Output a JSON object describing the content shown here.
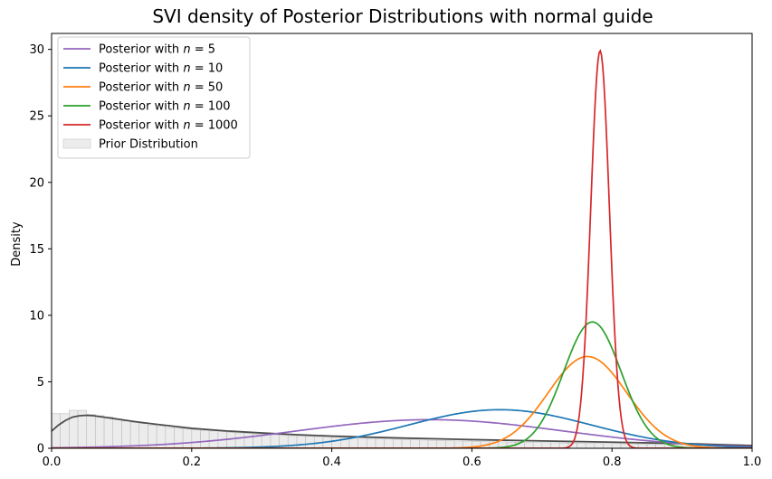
{
  "chart_data": {
    "type": "line",
    "title": "SVI density of Posterior Distributions with normal guide",
    "xlabel": "",
    "ylabel": "Density",
    "xlim": [
      0.0,
      1.0
    ],
    "ylim": [
      0,
      31.2
    ],
    "xticks": [
      {
        "value": 0.0,
        "label": "0.0"
      },
      {
        "value": 0.2,
        "label": "0.2"
      },
      {
        "value": 0.4,
        "label": "0.4"
      },
      {
        "value": 0.6,
        "label": "0.6"
      },
      {
        "value": 0.8,
        "label": "0.8"
      },
      {
        "value": 1.0,
        "label": "1.0"
      }
    ],
    "yticks": [
      {
        "value": 0,
        "label": "0"
      },
      {
        "value": 5,
        "label": "5"
      },
      {
        "value": 10,
        "label": "10"
      },
      {
        "value": 15,
        "label": "15"
      },
      {
        "value": 20,
        "label": "20"
      },
      {
        "value": 25,
        "label": "25"
      },
      {
        "value": 30,
        "label": "30"
      }
    ],
    "grid": false,
    "legend_position": "upper-left",
    "legend": [
      {
        "prefix": "Posterior with ",
        "math": "n",
        "suffix": " = 5",
        "color": "#9467bd",
        "kind": "line"
      },
      {
        "prefix": "Posterior with ",
        "math": "n",
        "suffix": " = 10",
        "color": "#1f77b4",
        "kind": "line"
      },
      {
        "prefix": "Posterior with ",
        "math": "n",
        "suffix": " = 50",
        "color": "#ff7f0e",
        "kind": "line"
      },
      {
        "prefix": "Posterior with ",
        "math": "n",
        "suffix": " = 100",
        "color": "#2ca02c",
        "kind": "line"
      },
      {
        "prefix": "Posterior with ",
        "math": "n",
        "suffix": " = 1000",
        "color": "#d62728",
        "kind": "line"
      },
      {
        "prefix": "Prior Distribution",
        "math": "",
        "suffix": "",
        "color": "#dddddd",
        "kind": "patch"
      }
    ],
    "series": [
      {
        "color": "#9467bd",
        "peak_x": 0.54,
        "peak_y": 2.15,
        "sd": 0.19
      },
      {
        "color": "#1f77b4",
        "peak_x": 0.64,
        "peak_y": 2.9,
        "sd": 0.13
      },
      {
        "color": "#ff7f0e",
        "peak_x": 0.765,
        "peak_y": 6.9,
        "sd": 0.056
      },
      {
        "color": "#2ca02c",
        "peak_x": 0.772,
        "peak_y": 9.5,
        "sd": 0.041
      },
      {
        "color": "#d62728",
        "peak_x": 0.783,
        "peak_y": 29.9,
        "sd": 0.0133
      }
    ],
    "prior_curve": {
      "color": "#4d4d4d",
      "x": [
        0.0,
        0.01,
        0.02,
        0.03,
        0.04,
        0.05,
        0.06,
        0.08,
        0.1,
        0.12,
        0.15,
        0.2,
        0.25,
        0.3,
        0.35,
        0.4,
        0.45,
        0.5,
        0.6,
        0.7,
        0.8,
        0.9,
        1.0
      ],
      "y": [
        1.3,
        1.75,
        2.1,
        2.35,
        2.45,
        2.48,
        2.45,
        2.3,
        2.15,
        2.0,
        1.8,
        1.5,
        1.3,
        1.15,
        1.02,
        0.92,
        0.84,
        0.77,
        0.65,
        0.55,
        0.46,
        0.36,
        0.2
      ]
    },
    "prior_histogram": {
      "bin_width": 0.0125,
      "heights": [
        2.6,
        2.6,
        2.85,
        2.85,
        2.55,
        2.45,
        2.35,
        2.2,
        2.05,
        1.95,
        1.85,
        1.75,
        1.65,
        1.55,
        1.5,
        1.45,
        1.4,
        1.35,
        1.3,
        1.25,
        1.2,
        1.15,
        1.12,
        1.08,
        1.05,
        1.02,
        0.98,
        0.95,
        0.92,
        0.9,
        0.88,
        0.85,
        0.83,
        0.8,
        0.78,
        0.76,
        0.74,
        0.72,
        0.7,
        0.68,
        0.66,
        0.64,
        0.62,
        0.6,
        0.58,
        0.57,
        0.55,
        0.54,
        0.52,
        0.5,
        0.49,
        0.48,
        0.46,
        0.45,
        0.44,
        0.43,
        0.42,
        0.41,
        0.4,
        0.39,
        0.38,
        0.37,
        0.36,
        0.35,
        0.35,
        0.34,
        0.33,
        0.33,
        0.32,
        0.31,
        0.31,
        0.3,
        0.3,
        0.29,
        0.29,
        0.28,
        0.28,
        0.27,
        0.27,
        0.26
      ]
    }
  }
}
